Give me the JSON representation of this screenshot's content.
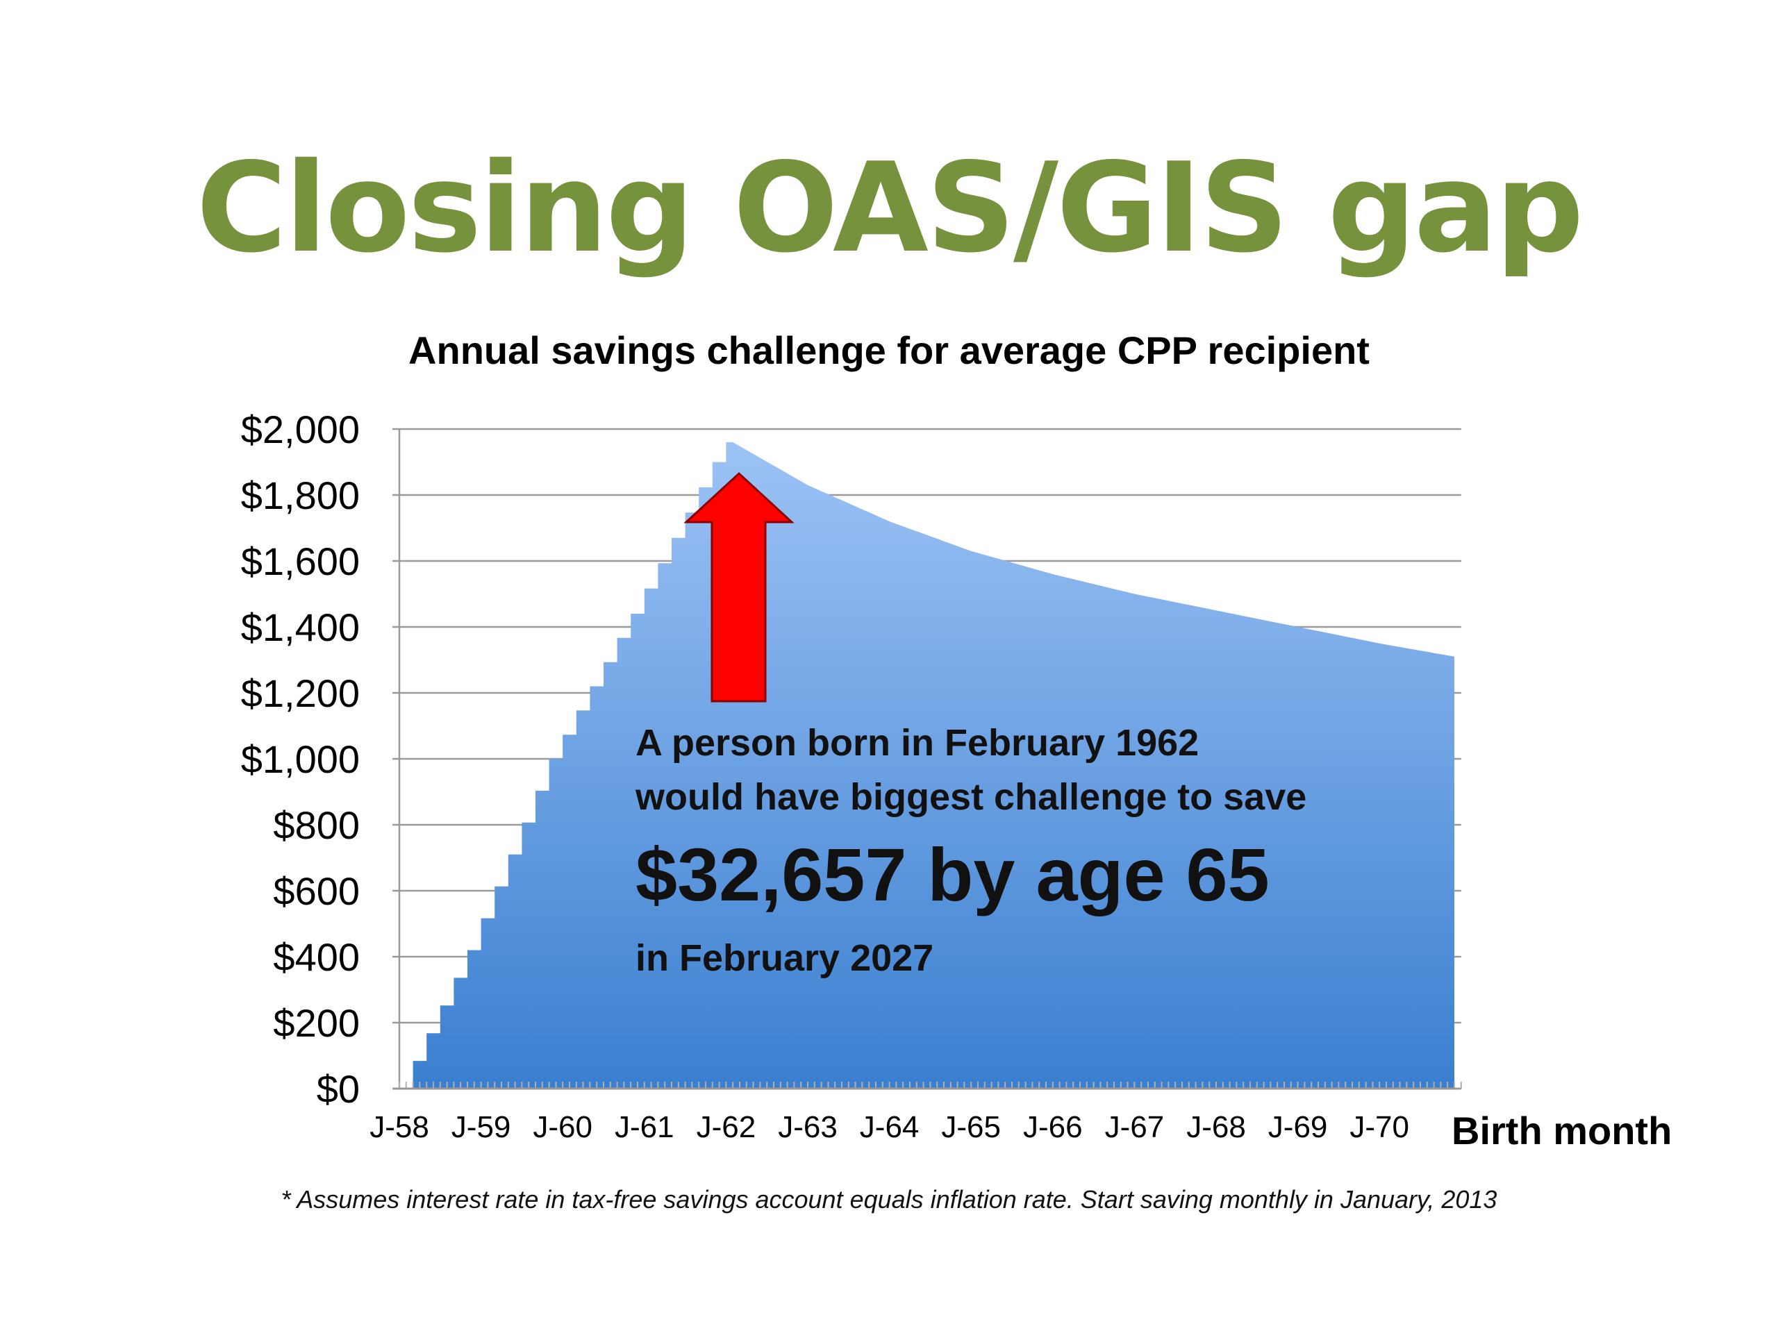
{
  "slide": {
    "title": "Closing OAS/GIS gap",
    "title_color": "#76923c",
    "footnote": "* Assumes interest rate in tax-free savings account equals inflation rate. Start saving monthly in January, 2013"
  },
  "annotation": {
    "line1": "A person born in February 1962",
    "line2": "would have biggest challenge to save",
    "big": "$32,657 by age 65",
    "line4": "in February 2027",
    "arrow_color": "#ff0000",
    "arrow_icon": "up-arrow-icon"
  },
  "chart_data": {
    "type": "area",
    "title": "Annual savings challenge for average CPP recipient",
    "xlabel": "Birth month",
    "ylabel": "",
    "x_tick_labels": [
      "J-58",
      "J-59",
      "J-60",
      "J-61",
      "J-62",
      "J-63",
      "J-64",
      "J-65",
      "J-66",
      "J-67",
      "J-68",
      "J-69",
      "J-70"
    ],
    "x_range": [
      "Jan 1958",
      "Dec 1970"
    ],
    "y_tick_labels": [
      "$0",
      "$200",
      "$400",
      "$600",
      "$800",
      "$1,000",
      "$1,200",
      "$1,400",
      "$1,600",
      "$1,800",
      "$2,000"
    ],
    "ylim": [
      0,
      2000
    ],
    "grid": true,
    "fill_color_top": "#9dc3f5",
    "fill_color_bottom": "#3a7fd0",
    "series": [
      {
        "x": [
          "Mar 1958",
          "Jan 1959",
          "Jan 1960",
          "Jan 1961",
          "Jan 1962",
          "Feb 1962",
          "Jan 1963",
          "Jan 1964",
          "Jan 1965",
          "Jan 1966",
          "Jan 1967",
          "Jan 1968",
          "Jan 1969",
          "Jan 1970",
          "Dec 1970"
        ],
        "values": [
          0,
          420,
          1000,
          1440,
          1900,
          1960,
          1830,
          1720,
          1630,
          1560,
          1500,
          1450,
          1400,
          1350,
          1310
        ]
      }
    ]
  }
}
